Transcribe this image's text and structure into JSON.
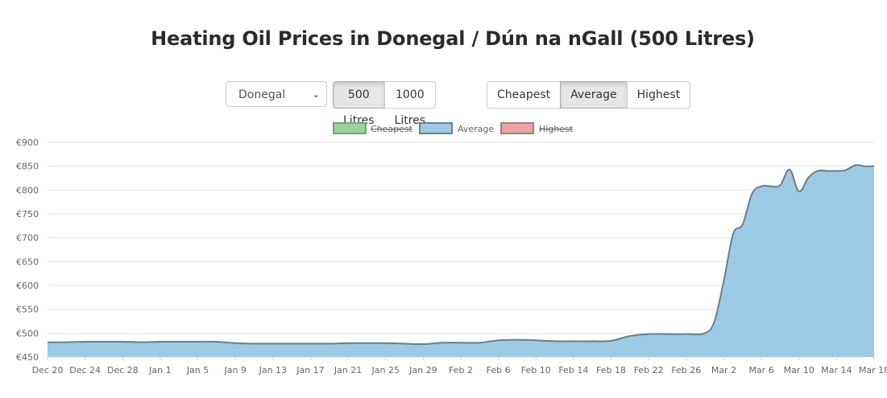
{
  "page": {
    "title": "Heating Oil Prices in Donegal / Dún na nGall (500 Litres)"
  },
  "controls": {
    "county_select": {
      "value": "Donegal"
    },
    "volume_buttons": [
      {
        "label": "500 Litres",
        "active": true
      },
      {
        "label": "1000 Litres",
        "active": false
      }
    ],
    "price_buttons": [
      {
        "label": "Cheapest",
        "active": false
      },
      {
        "label": "Average",
        "active": true
      },
      {
        "label": "Highest",
        "active": false
      }
    ]
  },
  "chart_data": {
    "type": "area",
    "title": "",
    "xlabel": "",
    "ylabel": "",
    "ylim": [
      450,
      900
    ],
    "y_ticks": [
      "€450",
      "€500",
      "€550",
      "€600",
      "€650",
      "€700",
      "€750",
      "€800",
      "€850",
      "€900"
    ],
    "x_ticks": [
      "Dec 20",
      "Dec 24",
      "Dec 28",
      "Jan 1",
      "Jan 5",
      "Jan 9",
      "Jan 13",
      "Jan 17",
      "Jan 21",
      "Jan 25",
      "Jan 29",
      "Feb 2",
      "Feb 6",
      "Feb 10",
      "Feb 14",
      "Feb 18",
      "Feb 22",
      "Feb 26",
      "Mar 2",
      "Mar 6",
      "Mar 10",
      "Mar 14",
      "Mar 18"
    ],
    "x_start": "Dec 20",
    "x_end": "Mar 18",
    "grid": true,
    "legend_position": "top-center",
    "legend": [
      {
        "name": "Cheapest",
        "fill": "#98d499",
        "stroke": "#7a9f7a",
        "hidden": true
      },
      {
        "name": "Average",
        "fill": "#9dcae4",
        "stroke": "#6b7f8c",
        "hidden": false
      },
      {
        "name": "Highest",
        "fill": "#eba4a6",
        "stroke": "#9d7f80",
        "hidden": true
      }
    ],
    "series": [
      {
        "name": "Average",
        "fill": "#9dcae4",
        "stroke": "#717c84",
        "points": [
          [
            "Dec 20",
            481
          ],
          [
            "Dec 22",
            481
          ],
          [
            "Dec 24",
            482
          ],
          [
            "Dec 26",
            482
          ],
          [
            "Dec 28",
            482
          ],
          [
            "Dec 30",
            481
          ],
          [
            "Jan 1",
            482
          ],
          [
            "Jan 3",
            482
          ],
          [
            "Jan 5",
            482
          ],
          [
            "Jan 7",
            482
          ],
          [
            "Jan 9",
            479
          ],
          [
            "Jan 11",
            478
          ],
          [
            "Jan 13",
            478
          ],
          [
            "Jan 15",
            478
          ],
          [
            "Jan 17",
            478
          ],
          [
            "Jan 19",
            478
          ],
          [
            "Jan 21",
            479
          ],
          [
            "Jan 23",
            479
          ],
          [
            "Jan 25",
            479
          ],
          [
            "Jan 27",
            478
          ],
          [
            "Jan 29",
            477
          ],
          [
            "Jan 31",
            480
          ],
          [
            "Feb 2",
            480
          ],
          [
            "Feb 4",
            480
          ],
          [
            "Feb 6",
            485
          ],
          [
            "Feb 8",
            486
          ],
          [
            "Feb 10",
            485
          ],
          [
            "Feb 12",
            483
          ],
          [
            "Feb 14",
            483
          ],
          [
            "Feb 16",
            483
          ],
          [
            "Feb 18",
            484
          ],
          [
            "Feb 20",
            494
          ],
          [
            "Feb 22",
            498
          ],
          [
            "Feb 24",
            498
          ],
          [
            "Feb 26",
            498
          ],
          [
            "Feb 28",
            500
          ],
          [
            "Mar 1",
            525
          ],
          [
            "Mar 2",
            610
          ],
          [
            "Mar 3",
            708
          ],
          [
            "Mar 4",
            728
          ],
          [
            "Mar 5",
            792
          ],
          [
            "Mar 6",
            808
          ],
          [
            "Mar 7",
            808
          ],
          [
            "Mar 8",
            810
          ],
          [
            "Mar 9",
            843
          ],
          [
            "Mar 10",
            797
          ],
          [
            "Mar 11",
            826
          ],
          [
            "Mar 12",
            840
          ],
          [
            "Mar 13",
            840
          ],
          [
            "Mar 14",
            840
          ],
          [
            "Mar 15",
            842
          ],
          [
            "Mar 16",
            852
          ],
          [
            "Mar 17",
            850
          ],
          [
            "Mar 18",
            850
          ]
        ]
      }
    ]
  }
}
